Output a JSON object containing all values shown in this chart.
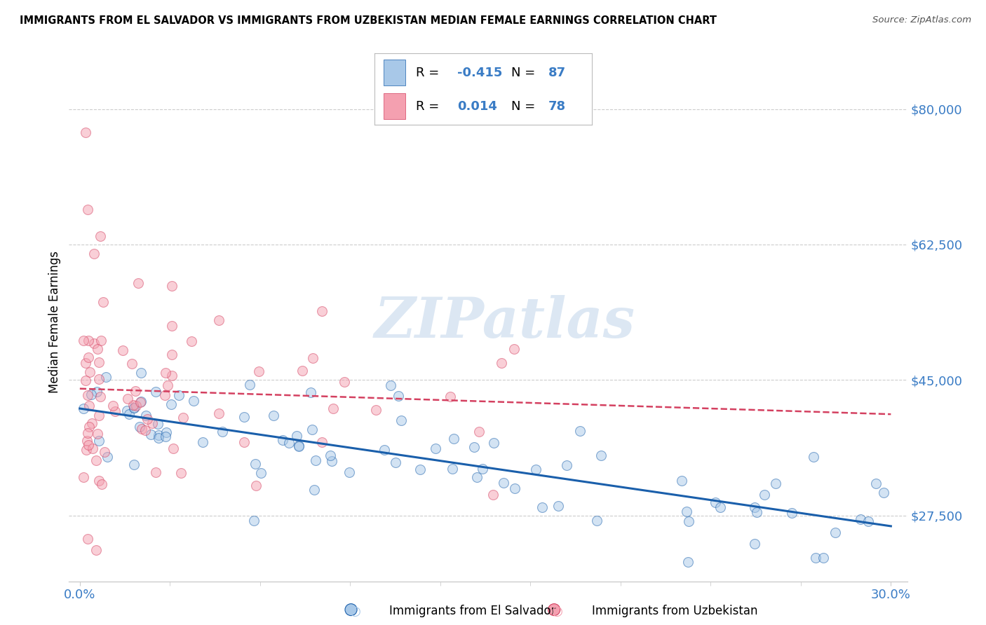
{
  "title": "IMMIGRANTS FROM EL SALVADOR VS IMMIGRANTS FROM UZBEKISTAN MEDIAN FEMALE EARNINGS CORRELATION CHART",
  "source": "Source: ZipAtlas.com",
  "ylabel": "Median Female Earnings",
  "yticks": [
    27500,
    45000,
    62500,
    80000
  ],
  "ytick_labels": [
    "$27,500",
    "$45,000",
    "$62,500",
    "$80,000"
  ],
  "xtick_labels": [
    "0.0%",
    "30.0%"
  ],
  "xlim": [
    0.0,
    0.3
  ],
  "ylim": [
    20000,
    85000
  ],
  "series1_color": "#A8C8E8",
  "series2_color": "#F4A0B0",
  "trendline1_color": "#1A5FAB",
  "trendline2_color": "#D44060",
  "footer_label1": "Immigrants from El Salvador",
  "footer_label2": "Immigrants from Uzbekistan",
  "watermark": "ZIPatlas",
  "watermark_color": "#C5D8EC",
  "background_color": "#FFFFFF",
  "grid_color": "#CCCCCC",
  "ytick_color": "#3A7CC5",
  "xtick_color": "#3A7CC5",
  "title_color": "#000000",
  "source_color": "#555555",
  "legend_R_label": "R = ",
  "legend_N_label": "N = ",
  "legend1_R": "-0.415",
  "legend1_N": "87",
  "legend2_R": "0.014",
  "legend2_N": "78"
}
